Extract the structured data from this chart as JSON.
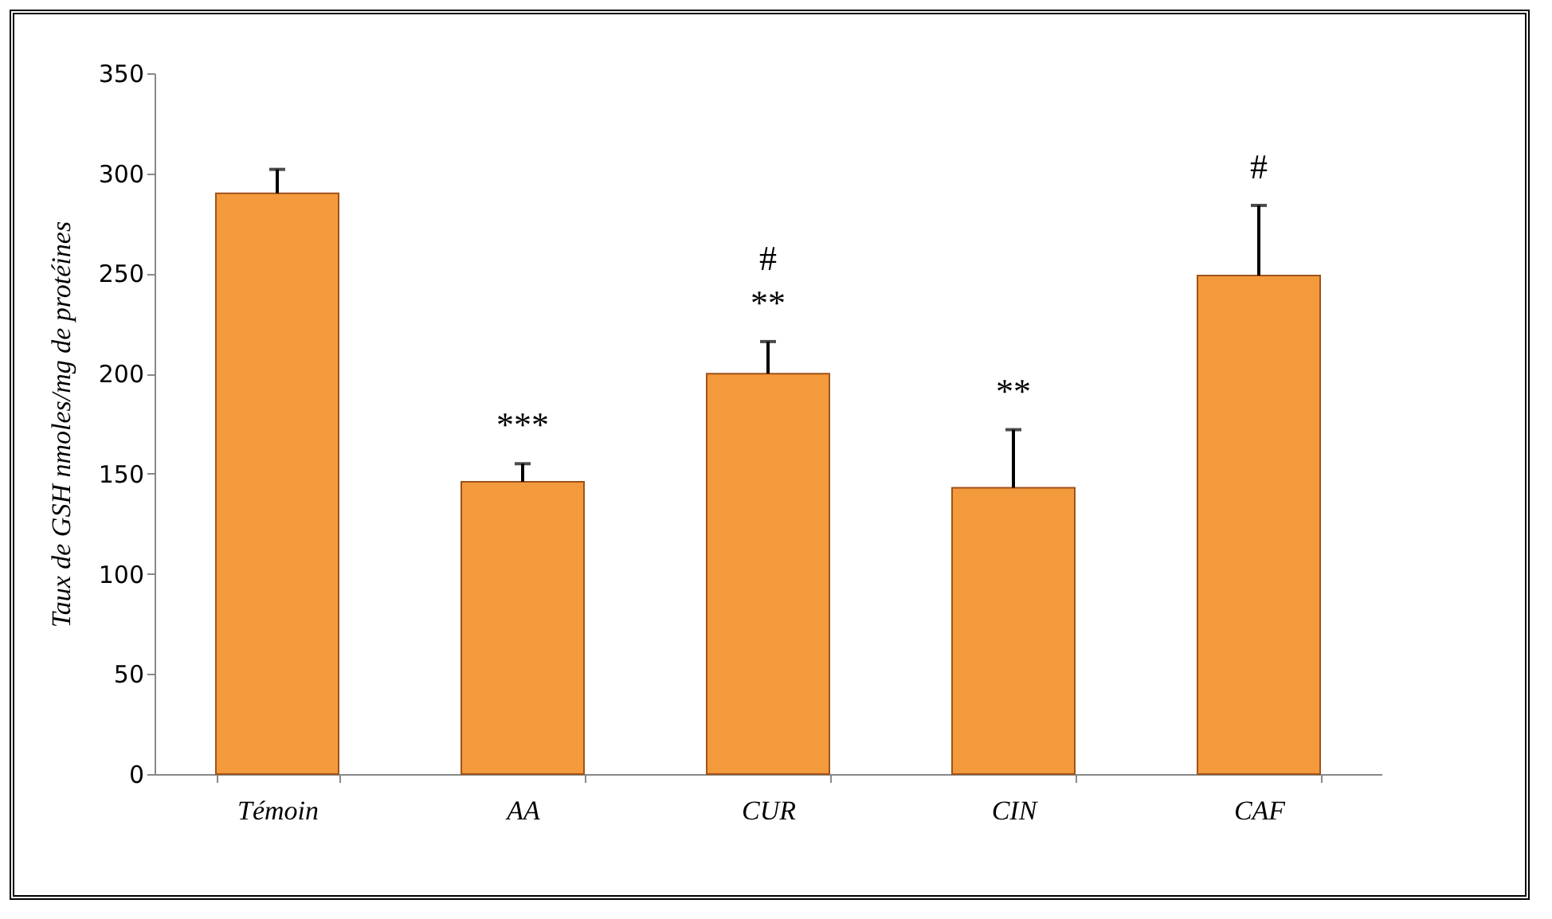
{
  "chart_data": {
    "type": "bar",
    "ylabel": "Taux de GSH nmoles/mg de protéines",
    "categories": [
      "Témoin",
      "AA",
      "CUR",
      "CIN",
      "CAF"
    ],
    "values": [
      290,
      146,
      200,
      143,
      249
    ],
    "color": "#f39a3c",
    "errors": [
      [
        290,
        302
      ],
      [
        146,
        155
      ],
      [
        200,
        216
      ],
      [
        143,
        172
      ],
      [
        249,
        284
      ]
    ],
    "ylim": [
      0,
      350
    ],
    "yticks": [
      0,
      50,
      100,
      150,
      200,
      250,
      300,
      350
    ],
    "grid": false,
    "value_labels": [
      null,
      "***",
      "#\n**",
      "**",
      "#"
    ]
  }
}
